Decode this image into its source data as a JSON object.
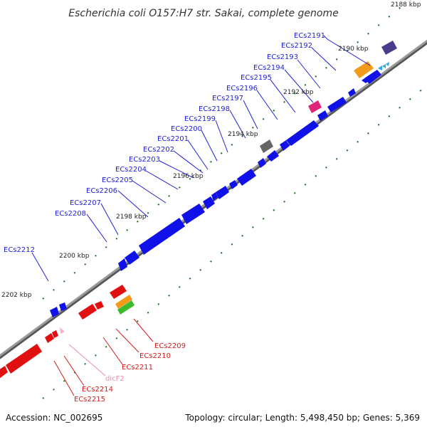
{
  "title": "Escherichia coli O157:H7 str. Sakai, complete genome",
  "accession": "Accession: NC_002695",
  "summary": "Topology: circular; Length: 5,498,450 bp; Genes: 5,369",
  "tick_labels": [
    "2188 kbp",
    "2190 kbp",
    "2192 kbp",
    "2194 kbp",
    "2196 kbp",
    "2198 kbp",
    "2200 kbp",
    "2202 kbp"
  ],
  "colors": {
    "forward_gene": "#1010e8",
    "reverse_gene": "#e01010",
    "backbone": "#888888",
    "tick": "#1e6e1e",
    "label_blue": "#1f1fd6",
    "label_red": "#d41c1c",
    "label_pink": "#f08ab0",
    "orange": "#f39a1a",
    "green": "#3dbb2f",
    "gray": "#666666",
    "purple": "#4a3c8c",
    "magenta": "#e0247a",
    "cyan": "#33a8e0"
  },
  "forward_labels": [
    "ECs2191",
    "ECs2192",
    "ECs2193",
    "ECs2194",
    "ECs2195",
    "ECs2196",
    "ECs2197",
    "ECs2198",
    "ECs2199",
    "ECs2200",
    "ECs2201",
    "ECs2202",
    "ECs2203",
    "ECs2204",
    "ECs2205",
    "ECs2206",
    "ECs2207",
    "ECs2208",
    "ECs2212"
  ],
  "reverse_labels": [
    "ECs2209",
    "ECs2210",
    "ECs2211",
    "dicF2",
    "ECs2214",
    "ECs2215"
  ]
}
